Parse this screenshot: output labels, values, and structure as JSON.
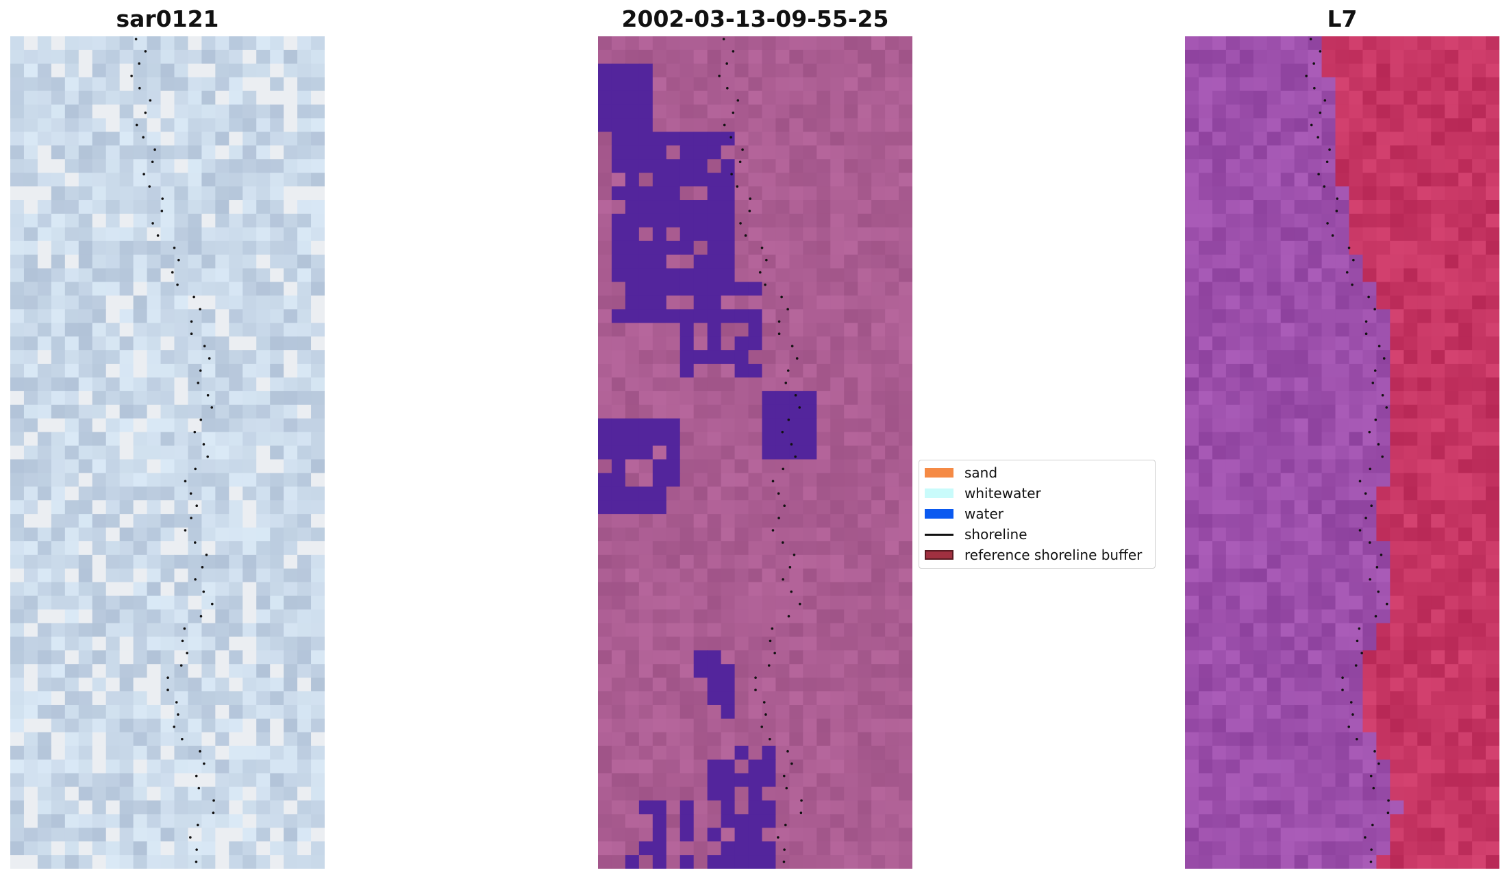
{
  "titles": [
    "sar0121",
    "2002-03-13-09-55-25",
    "L7"
  ],
  "legend": [
    {
      "label": "sand",
      "color": "#f58a45",
      "kind": "patch"
    },
    {
      "label": "whitewater",
      "color": "#c9fbfb",
      "kind": "patch"
    },
    {
      "label": "water",
      "color": "#0a59f0",
      "kind": "patch"
    },
    {
      "label": "shoreline",
      "color": "#111111",
      "kind": "line"
    },
    {
      "label": "reference shoreline buffer",
      "color": "#a03040",
      "border": "#5a1a22",
      "kind": "patch"
    }
  ],
  "colors": {
    "rgb_base": "#c4cfe0",
    "classified_base": "#a85a90",
    "classified_water_overlay": "#53259c",
    "l7_left": "#9a4aa8",
    "l7_right": "#c43060"
  }
}
